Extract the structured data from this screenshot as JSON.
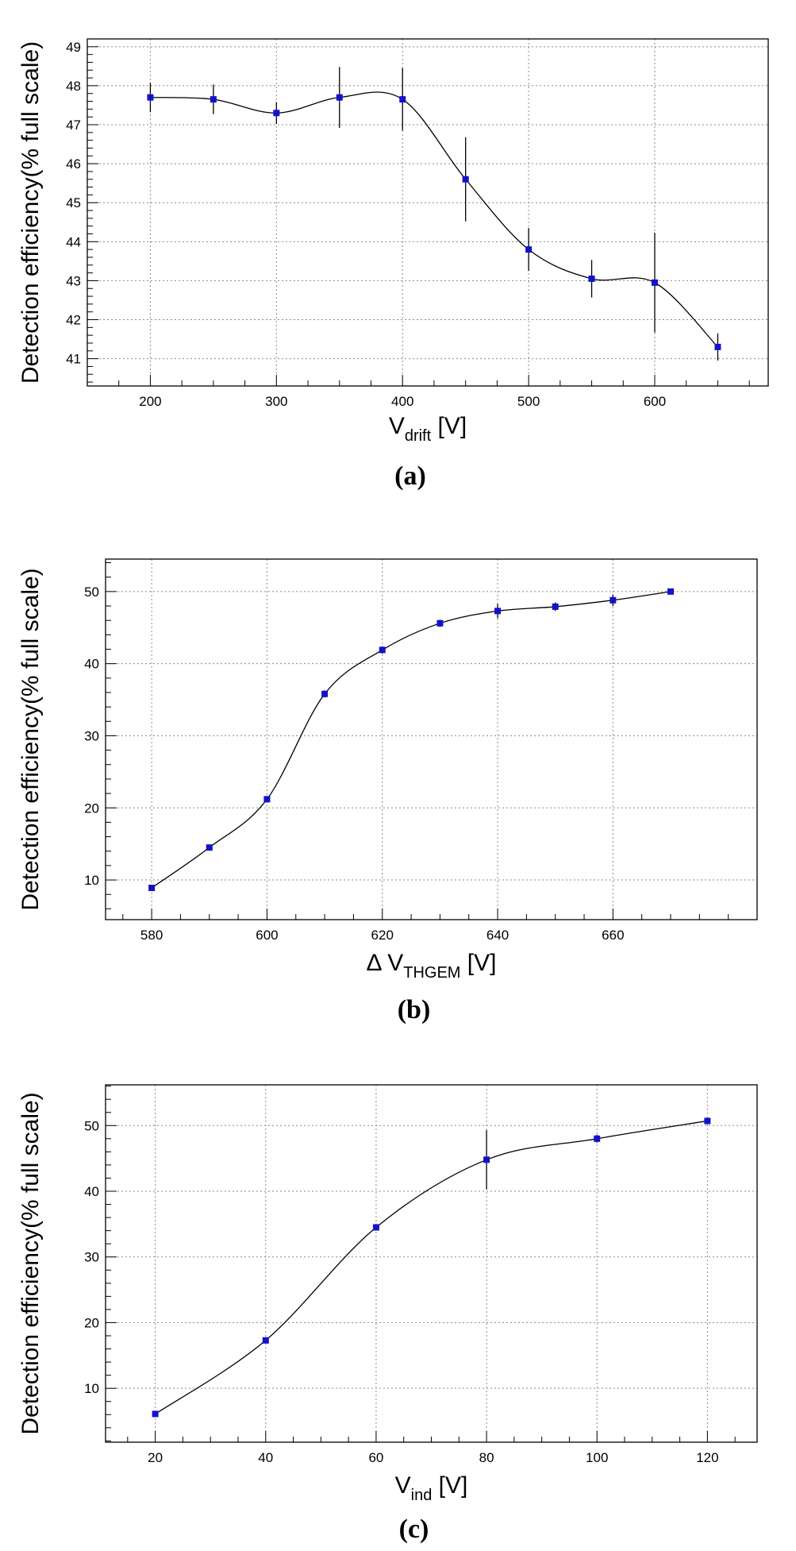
{
  "chart_data": [
    {
      "type": "scatter",
      "panel_label": "(a)",
      "xlabel": {
        "main": "V",
        "sub": "drift",
        "unit": " [V]"
      },
      "ylabel": "Detection efficiency(% full scale)",
      "xlim": [
        150,
        690
      ],
      "ylim": [
        40.3,
        49.2
      ],
      "xticks": [
        200,
        300,
        400,
        500,
        600
      ],
      "yticks": [
        41,
        42,
        43,
        44,
        45,
        46,
        47,
        48,
        49
      ],
      "x_minor_step": 25,
      "y_minor_step": 0.2,
      "grid": true,
      "marker_color": "#1212cc",
      "curve": "smooth",
      "series": [
        {
          "x": [
            200,
            250,
            300,
            350,
            400,
            450,
            500,
            550,
            600,
            650
          ],
          "y": [
            47.7,
            47.65,
            47.3,
            47.7,
            47.65,
            45.6,
            43.8,
            43.05,
            42.95,
            41.3
          ],
          "err": [
            0.38,
            0.38,
            0.28,
            0.78,
            0.8,
            1.08,
            0.55,
            0.48,
            1.28,
            0.35
          ]
        }
      ]
    },
    {
      "type": "scatter",
      "panel_label": "(b)",
      "xlabel": {
        "main": "Δ V",
        "sub": "THGEM",
        "unit": " [V]"
      },
      "ylabel": "Detection efficiency(% full scale)",
      "xlim": [
        572,
        685
      ],
      "ylim": [
        4.5,
        54.5
      ],
      "xticks": [
        580,
        600,
        620,
        640,
        660
      ],
      "yticks": [
        10,
        20,
        30,
        40,
        50
      ],
      "x_minor_step": 5,
      "y_minor_step": 2,
      "grid": true,
      "marker_color": "#1212cc",
      "curve": "smooth",
      "series": [
        {
          "x": [
            580,
            590,
            600,
            610,
            620,
            630,
            640,
            650,
            660,
            670
          ],
          "y": [
            8.9,
            14.5,
            21.2,
            35.8,
            41.9,
            45.6,
            47.3,
            47.9,
            48.8,
            50.0
          ],
          "err": [
            0.3,
            0.3,
            0.4,
            0.5,
            0.5,
            0.5,
            1.0,
            0.6,
            0.8,
            0.3
          ]
        }
      ]
    },
    {
      "type": "scatter",
      "panel_label": "(c)",
      "xlabel": {
        "main": "V",
        "sub": "ind",
        "unit": " [V]"
      },
      "ylabel": "Detection efficiency(% full scale)",
      "xlim": [
        11,
        129
      ],
      "ylim": [
        1.8,
        56.2
      ],
      "xticks": [
        20,
        40,
        60,
        80,
        100,
        120
      ],
      "yticks": [
        10,
        20,
        30,
        40,
        50
      ],
      "x_minor_step": 5,
      "y_minor_step": 2,
      "grid": true,
      "marker_color": "#1212cc",
      "curve": "smooth",
      "series": [
        {
          "x": [
            20,
            40,
            60,
            80,
            100,
            120
          ],
          "y": [
            6.1,
            17.3,
            34.5,
            44.8,
            48.0,
            50.7
          ],
          "err": [
            0.3,
            0.3,
            0.5,
            4.5,
            0.6,
            0.5
          ]
        }
      ]
    }
  ]
}
